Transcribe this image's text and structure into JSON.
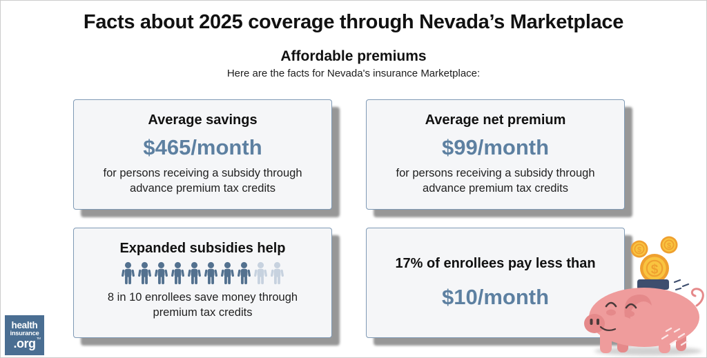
{
  "page": {
    "title": "Facts about 2025 coverage through Nevada’s Marketplace",
    "subtitle": "Affordable premiums",
    "intro": "Here are the facts for Nevada's insurance Marketplace:"
  },
  "cards": [
    {
      "heading": "Average savings",
      "amount": "$465/month",
      "description": "for persons receiving a subsidy through advance premium tax credits"
    },
    {
      "heading": "Average net premium",
      "amount": "$99/month",
      "description": "for persons receiving a subsidy through advance premium tax credits"
    },
    {
      "heading": "Expanded subsidies help",
      "description": "8 in 10 enrollees save money through premium tax credits",
      "pictograph": {
        "total": 10,
        "highlighted": 8,
        "filled_color": "#53718F",
        "light_color": "#C7D2DF"
      }
    },
    {
      "heading": "17% of enrollees pay less than",
      "amount": "$10/month"
    }
  ],
  "logo": {
    "line1": "health",
    "line2": "insurance",
    "line3": ".org",
    "trademark": "TM"
  },
  "illustration": {
    "name": "piggy-bank-with-coins",
    "coin_symbol": "$"
  },
  "icons": {
    "person": "person-icon",
    "coin": "coin-icon",
    "piggy_bank": "piggy-bank-icon"
  },
  "colors": {
    "accent": "#5D80A1",
    "card_bg": "#F5F6F8",
    "card_border": "#7E99B5",
    "shadow": "#828282",
    "text": "#141414",
    "logo_bg": "#4A6E92",
    "pictograph_filled": "#53718F",
    "pictograph_light": "#C7D2DF",
    "pig_pink": "#EF9C9C",
    "pig_dark_pink": "#E5898A",
    "pig_outline": "#4A3A3A",
    "coin_gold": "#F9C440",
    "coin_orange": "#EFA02F",
    "slot_navy": "#3E4E6E"
  },
  "chart_data": {
    "type": "table",
    "title": "Facts about 2025 coverage through Nevada’s Marketplace",
    "subtitle": "Affordable premiums",
    "rows": [
      {
        "metric": "Average savings for persons receiving a subsidy through advance premium tax credits",
        "value": "$465/month"
      },
      {
        "metric": "Average net premium for persons receiving a subsidy through advance premium tax credits",
        "value": "$99/month"
      },
      {
        "metric": "Enrollees who save money through premium tax credits",
        "value": "8 in 10"
      },
      {
        "metric": "Enrollees paying less than $10/month",
        "value": "17%"
      }
    ],
    "pictogram": {
      "type": "pictogram",
      "total": 10,
      "highlighted": 8,
      "label": "8 in 10 enrollees"
    }
  }
}
